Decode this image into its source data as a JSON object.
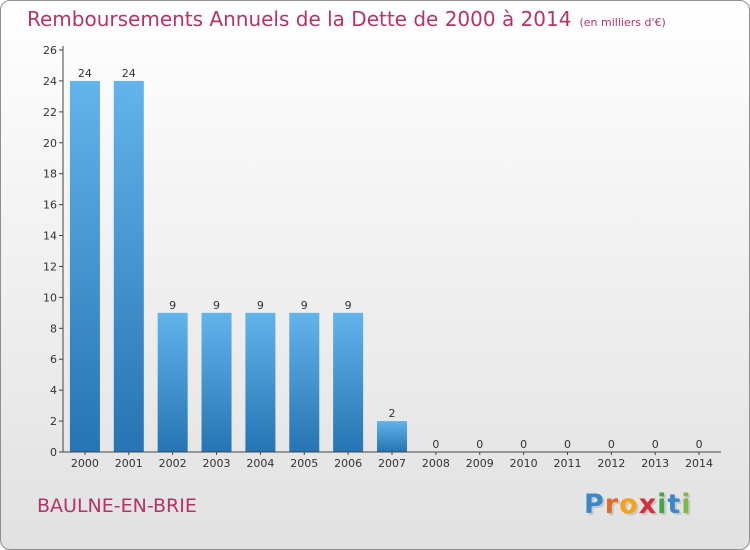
{
  "title": "Remboursements Annuels de la Dette de 2000 à 2014",
  "unit": "(en milliers d'€)",
  "commune": "BAULNE-EN-BRIE",
  "logo": {
    "letters": [
      "P",
      "r",
      "o",
      "x",
      "i",
      "t",
      "i"
    ],
    "colors": [
      "#3b88c9",
      "#e06b2a",
      "#f2a31b",
      "#d22e3b",
      "#47a447",
      "#3b88c9",
      "#7fb93f"
    ]
  },
  "colors": {
    "bar_light": "#62b4ec",
    "bar_dark": "#2674b3",
    "text_accent": "#b3336b",
    "axis": "#444444"
  },
  "chart_data": {
    "type": "bar",
    "title": "Remboursements Annuels de la Dette de 2000 à 2014",
    "ylabel": "en milliers d'€",
    "xlabel": "",
    "categories": [
      "2000",
      "2001",
      "2002",
      "2003",
      "2004",
      "2005",
      "2006",
      "2007",
      "2008",
      "2009",
      "2010",
      "2011",
      "2012",
      "2013",
      "2014"
    ],
    "values": [
      24,
      24,
      9,
      9,
      9,
      9,
      9,
      2,
      0,
      0,
      0,
      0,
      0,
      0,
      0
    ],
    "labels": [
      "24",
      "24",
      "9",
      "9",
      "9",
      "9",
      "9",
      "2",
      "0",
      "0",
      "0",
      "0",
      "0",
      "0",
      "0"
    ],
    "ylim": [
      0,
      26
    ],
    "yticks": [
      0,
      2,
      4,
      6,
      8,
      10,
      12,
      14,
      16,
      18,
      20,
      22,
      24,
      26
    ],
    "grid": false
  }
}
